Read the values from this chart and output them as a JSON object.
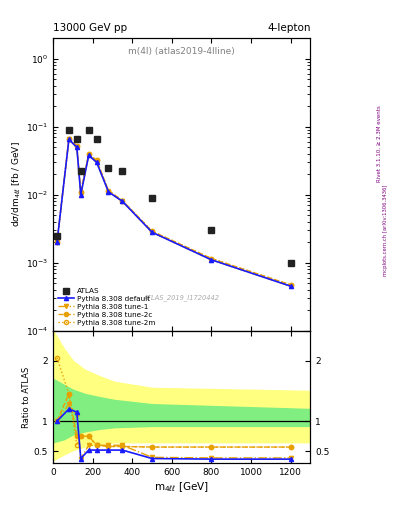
{
  "title_left": "13000 GeV pp",
  "title_right": "4-lepton",
  "plot_label": "m(4l) (atlas2019-4lline)",
  "watermark": "ATLAS_2019_I1720442",
  "right_label1": "Rivet 3.1.10, ≥ 2.3M events",
  "right_label2": "mcplots.cern.ch [arXiv:1306.3436]",
  "x_data": [
    20,
    80,
    120,
    140,
    180,
    220,
    280,
    350,
    500,
    800,
    1200
  ],
  "atlas_y": [
    0.0025,
    0.09,
    0.065,
    0.022,
    0.09,
    0.065,
    0.025,
    0.022,
    0.009,
    0.003,
    0.001
  ],
  "py_default": [
    0.002,
    0.065,
    0.05,
    0.01,
    0.038,
    0.03,
    0.011,
    0.008,
    0.0028,
    0.0011,
    0.00045
  ],
  "py_tune1": [
    0.002,
    0.065,
    0.05,
    0.01,
    0.038,
    0.03,
    0.011,
    0.008,
    0.0028,
    0.0011,
    0.00045
  ],
  "py_tune2c": [
    0.002,
    0.067,
    0.053,
    0.011,
    0.04,
    0.032,
    0.0115,
    0.0082,
    0.0029,
    0.00115,
    0.00047
  ],
  "py_tune2m": [
    0.002,
    0.067,
    0.053,
    0.011,
    0.04,
    0.032,
    0.0115,
    0.0082,
    0.0029,
    0.00115,
    0.00047
  ],
  "ratio_default": [
    1.0,
    1.2,
    1.15,
    0.38,
    0.52,
    0.52,
    0.52,
    0.52,
    0.38,
    0.37,
    0.37
  ],
  "ratio_tune1": [
    1.0,
    1.28,
    1.1,
    0.38,
    0.6,
    0.6,
    0.6,
    0.6,
    0.4,
    0.39,
    0.39
  ],
  "ratio_tune2c": [
    1.0,
    1.45,
    0.75,
    0.75,
    0.75,
    0.6,
    0.58,
    0.58,
    0.57,
    0.57,
    0.57
  ],
  "ratio_tune2m": [
    2.05,
    1.45,
    0.6,
    0.75,
    0.75,
    0.6,
    0.58,
    0.58,
    0.57,
    0.57,
    0.57
  ],
  "band_x": [
    0,
    55,
    100,
    160,
    230,
    310,
    500,
    1300
  ],
  "yellow_low": [
    0.35,
    0.45,
    0.52,
    0.58,
    0.62,
    0.65,
    0.65,
    0.65
  ],
  "yellow_high": [
    2.5,
    2.2,
    2.0,
    1.85,
    1.75,
    1.65,
    1.55,
    1.5
  ],
  "green_low": [
    0.65,
    0.7,
    0.78,
    0.83,
    0.87,
    0.9,
    0.92,
    0.92
  ],
  "green_high": [
    1.7,
    1.6,
    1.52,
    1.45,
    1.4,
    1.35,
    1.28,
    1.2
  ],
  "color_blue": "#1a1aff",
  "color_orange": "#e8a000",
  "color_atlas": "#222222",
  "ylim_main": [
    0.0001,
    2.0
  ],
  "ylim_ratio": [
    0.3,
    2.5
  ],
  "xlim": [
    0,
    1300
  ]
}
